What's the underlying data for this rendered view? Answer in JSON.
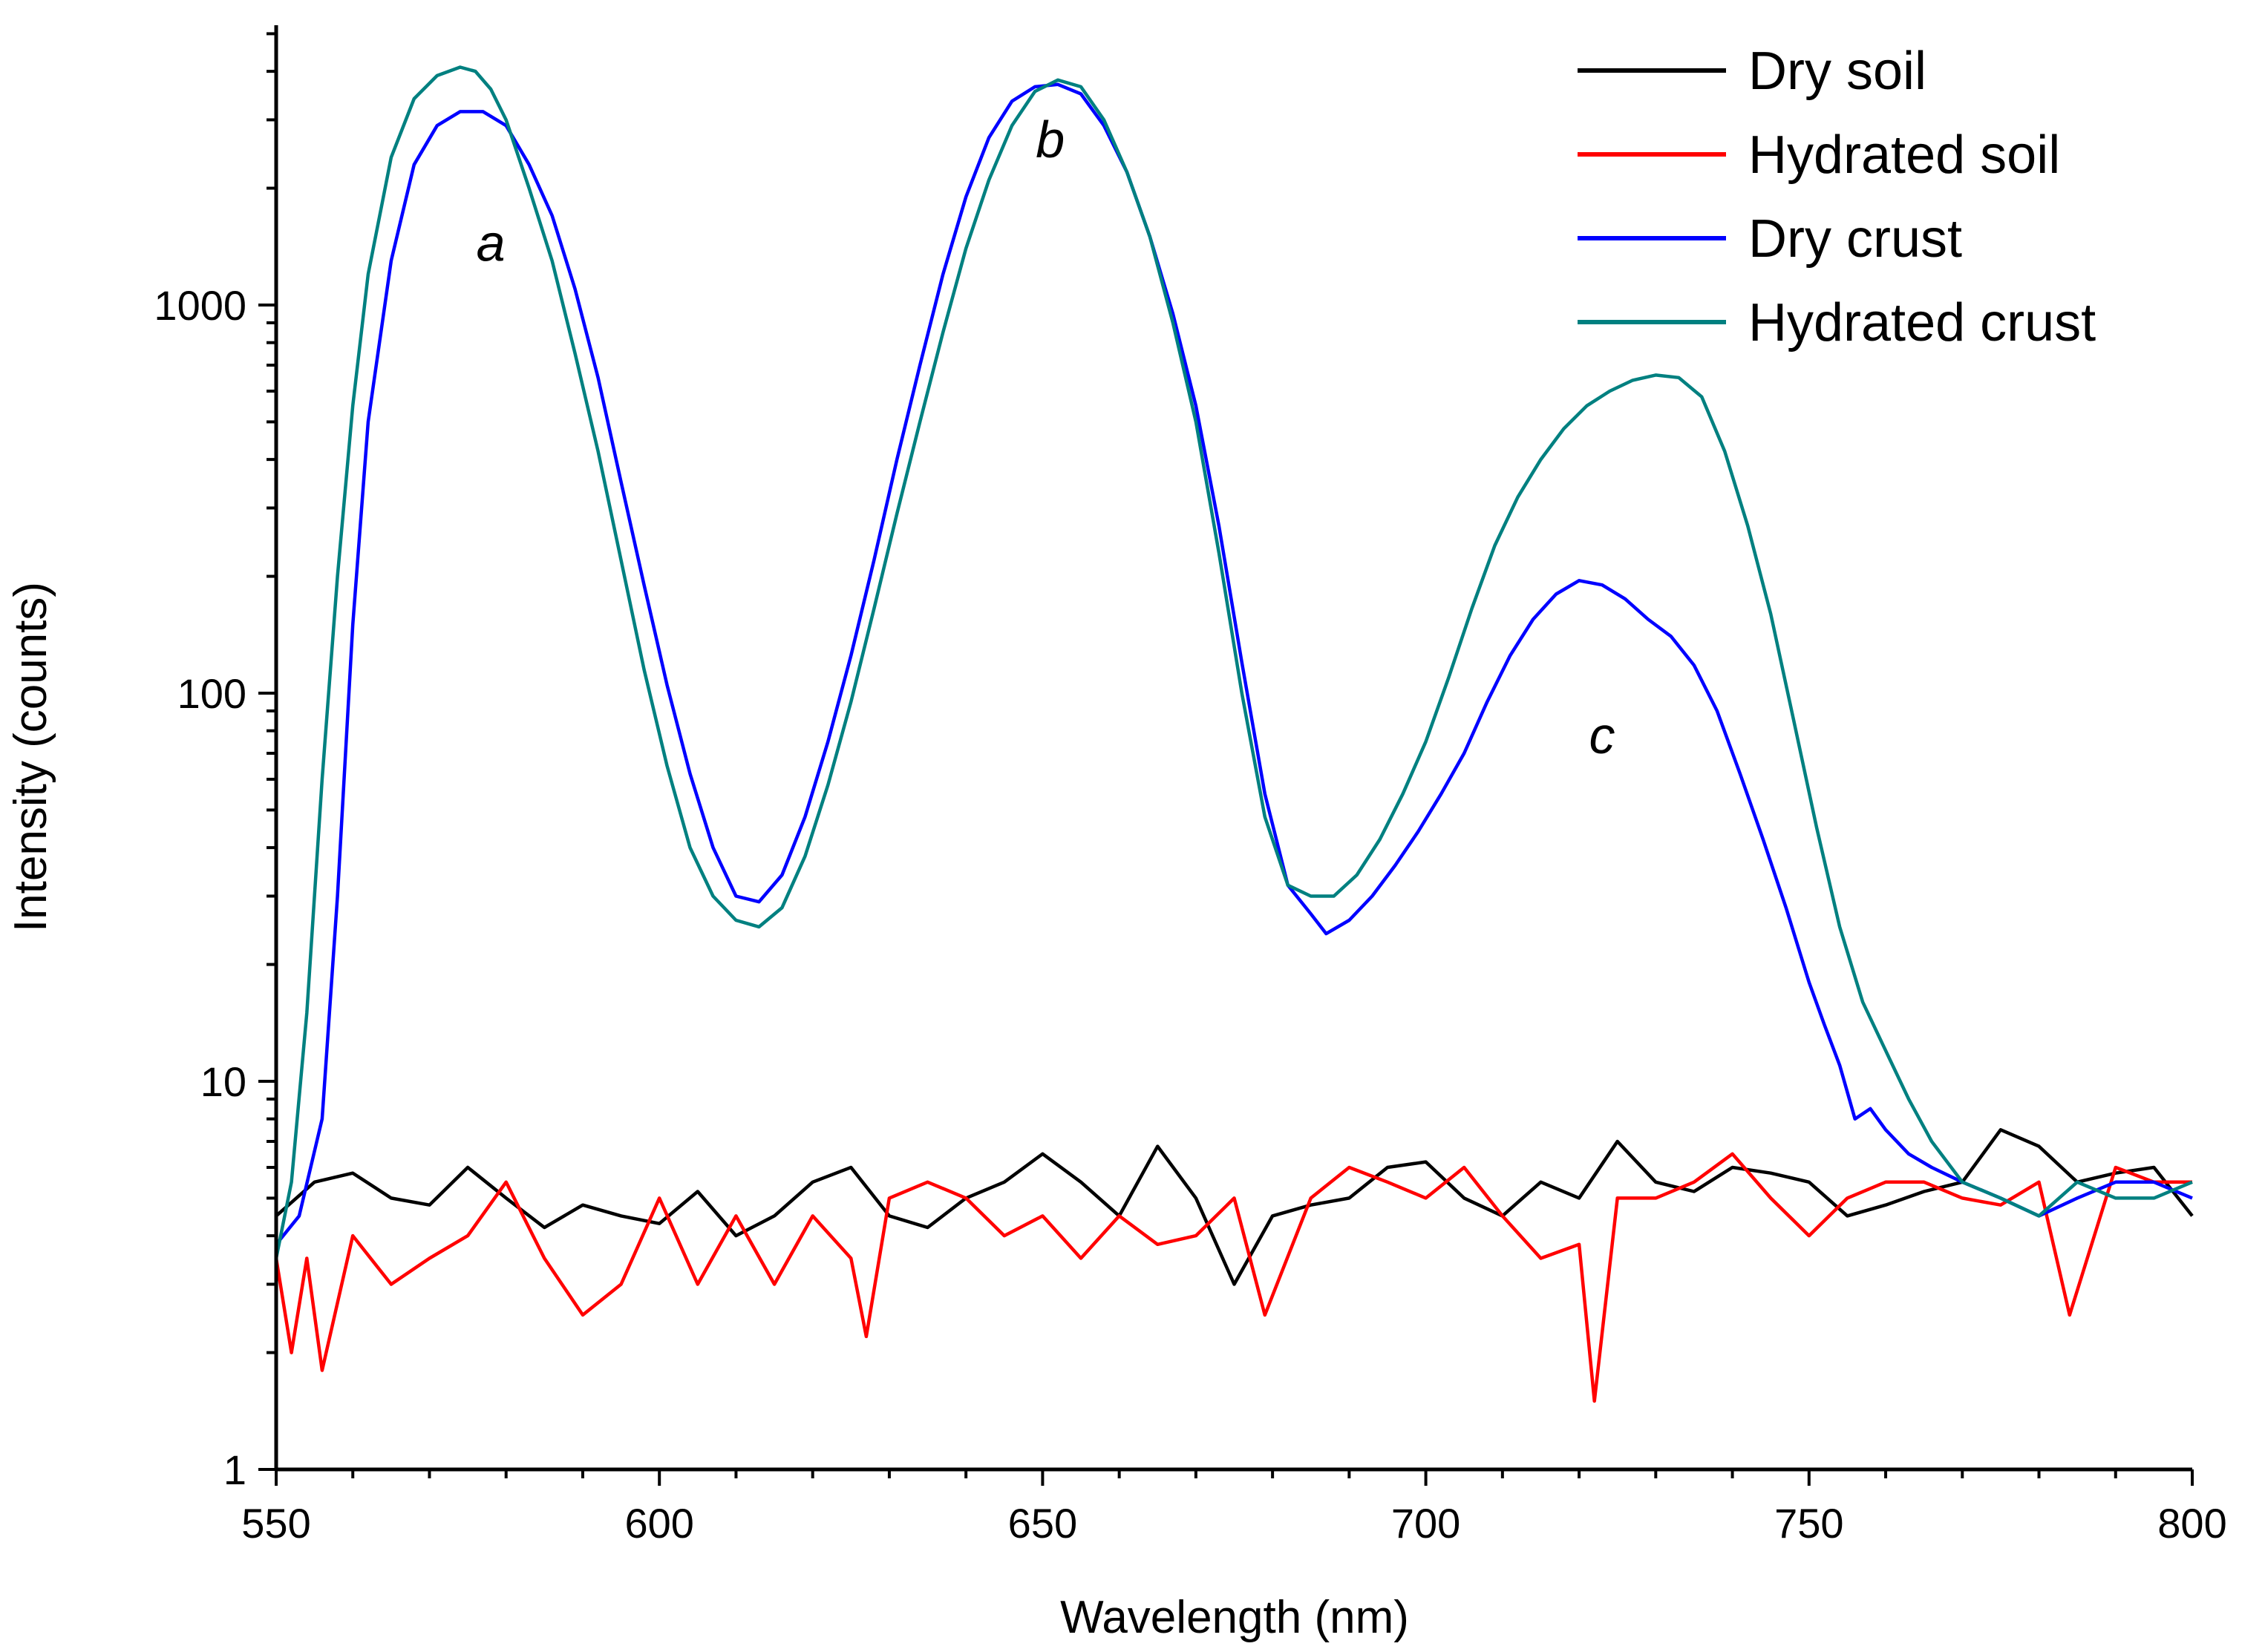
{
  "chart_data": {
    "type": "line",
    "title": "",
    "xlabel": "Wavelength (nm)",
    "ylabel": "Intensity (counts)",
    "xlim": [
      550,
      800
    ],
    "ylim": [
      1,
      5000
    ],
    "yscale": "log",
    "x_ticks": [
      550,
      600,
      650,
      700,
      750,
      800
    ],
    "x_tick_labels": [
      "550",
      "600",
      "650",
      "700",
      "750",
      "800"
    ],
    "y_ticks": [
      1,
      10,
      100,
      1000
    ],
    "y_tick_labels": [
      "1",
      "10",
      "100",
      "1000"
    ],
    "legend_position": "top-right",
    "series": [
      {
        "name": "Dry soil",
        "color": "#000000",
        "x": [
          550,
          555,
          560,
          565,
          570,
          575,
          580,
          585,
          590,
          595,
          600,
          605,
          610,
          615,
          620,
          625,
          630,
          635,
          640,
          645,
          650,
          655,
          660,
          665,
          670,
          675,
          680,
          685,
          690,
          695,
          700,
          705,
          710,
          715,
          720,
          725,
          730,
          735,
          740,
          745,
          750,
          755,
          760,
          765,
          770,
          775,
          780,
          785,
          790,
          795,
          800
        ],
        "y": [
          4.5,
          5.5,
          5.8,
          5.0,
          4.8,
          6.0,
          5.0,
          4.2,
          4.8,
          4.5,
          4.3,
          5.2,
          4.0,
          4.5,
          5.5,
          6.0,
          4.5,
          4.2,
          5.0,
          5.5,
          6.5,
          5.5,
          4.5,
          6.8,
          5.0,
          3.0,
          4.5,
          4.8,
          5.0,
          6.0,
          6.2,
          5.0,
          4.5,
          5.5,
          5.0,
          7.0,
          5.5,
          5.2,
          6.0,
          5.8,
          5.5,
          4.5,
          4.8,
          5.2,
          5.5,
          7.5,
          6.8,
          5.5,
          5.8,
          6.0,
          4.5
        ]
      },
      {
        "name": "Hydrated soil",
        "color": "#ff0000",
        "x": [
          550,
          552,
          554,
          556,
          560,
          565,
          570,
          575,
          580,
          585,
          590,
          595,
          600,
          605,
          610,
          615,
          620,
          625,
          627,
          630,
          635,
          640,
          645,
          650,
          655,
          660,
          665,
          670,
          675,
          679,
          685,
          690,
          695,
          700,
          705,
          710,
          715,
          720,
          722,
          725,
          730,
          735,
          740,
          745,
          750,
          755,
          760,
          765,
          770,
          775,
          780,
          784,
          790,
          795,
          800
        ],
        "y": [
          3.5,
          2.0,
          3.5,
          1.8,
          4.0,
          3.0,
          3.5,
          4.0,
          5.5,
          3.5,
          2.5,
          3.0,
          5.0,
          3.0,
          4.5,
          3.0,
          4.5,
          3.5,
          2.2,
          5.0,
          5.5,
          5.0,
          4.0,
          4.5,
          3.5,
          4.5,
          3.8,
          4.0,
          5.0,
          2.5,
          5.0,
          6.0,
          5.5,
          5.0,
          6.0,
          4.5,
          3.5,
          3.8,
          1.5,
          5.0,
          5.0,
          5.5,
          6.5,
          5.0,
          4.0,
          5.0,
          5.5,
          5.5,
          5.0,
          4.8,
          5.5,
          2.5,
          6.0,
          5.5,
          5.5
        ]
      },
      {
        "name": "Dry crust",
        "color": "#0000ff",
        "x": [
          550,
          553,
          556,
          558,
          560,
          562,
          565,
          568,
          571,
          574,
          577,
          580,
          583,
          586,
          589,
          592,
          595,
          598,
          601,
          604,
          607,
          610,
          613,
          616,
          619,
          622,
          625,
          628,
          631,
          634,
          637,
          640,
          643,
          646,
          649,
          652,
          655,
          658,
          661,
          664,
          667,
          670,
          673,
          676,
          679,
          682,
          685,
          687,
          690,
          693,
          696,
          699,
          702,
          705,
          708,
          711,
          714,
          717,
          720,
          723,
          726,
          729,
          732,
          735,
          738,
          741,
          744,
          747,
          750,
          752,
          754,
          756,
          758,
          760,
          763,
          766,
          770,
          775,
          780,
          785,
          790,
          795,
          800
        ],
        "y": [
          3.8,
          4.5,
          8,
          30,
          150,
          500,
          1300,
          2300,
          2900,
          3150,
          3150,
          2900,
          2300,
          1700,
          1100,
          650,
          350,
          190,
          105,
          62,
          40,
          30,
          29,
          34,
          48,
          75,
          125,
          220,
          400,
          700,
          1200,
          1900,
          2700,
          3350,
          3650,
          3700,
          3500,
          2900,
          2200,
          1500,
          950,
          550,
          270,
          120,
          55,
          32,
          27,
          24,
          26,
          30,
          36,
          44,
          55,
          70,
          95,
          125,
          155,
          180,
          195,
          190,
          175,
          155,
          140,
          118,
          90,
          62,
          42,
          28,
          18,
          14,
          11,
          8,
          8.5,
          7.5,
          6.5,
          6.0,
          5.5,
          5.0,
          4.5,
          5.0,
          5.5,
          5.5,
          5.0
        ]
      },
      {
        "name": "Hydrated crust",
        "color": "#008080",
        "x": [
          550,
          552,
          554,
          556,
          558,
          560,
          562,
          565,
          568,
          571,
          574,
          576,
          578,
          580,
          583,
          586,
          589,
          592,
          595,
          598,
          601,
          604,
          607,
          610,
          613,
          616,
          619,
          622,
          625,
          628,
          631,
          634,
          637,
          640,
          643,
          646,
          649,
          652,
          655,
          658,
          661,
          664,
          667,
          670,
          673,
          676,
          679,
          682,
          685,
          688,
          691,
          694,
          697,
          700,
          703,
          706,
          709,
          712,
          715,
          718,
          721,
          724,
          727,
          730,
          733,
          736,
          739,
          742,
          745,
          748,
          751,
          754,
          757,
          760,
          763,
          766,
          770,
          775,
          780,
          785,
          790,
          795,
          800
        ],
        "y": [
          3.5,
          5.5,
          15,
          60,
          200,
          550,
          1200,
          2400,
          3400,
          3900,
          4100,
          4000,
          3600,
          3000,
          2000,
          1300,
          750,
          420,
          220,
          115,
          65,
          40,
          30,
          26,
          25,
          28,
          38,
          58,
          95,
          165,
          290,
          500,
          850,
          1400,
          2100,
          2900,
          3550,
          3800,
          3650,
          3000,
          2200,
          1500,
          900,
          500,
          230,
          100,
          48,
          32,
          30,
          30,
          34,
          42,
          55,
          75,
          110,
          165,
          240,
          320,
          400,
          480,
          550,
          600,
          640,
          660,
          650,
          580,
          420,
          270,
          160,
          85,
          45,
          25,
          16,
          12,
          9,
          7.0,
          5.5,
          5.0,
          4.5,
          5.5,
          5.0,
          5.0,
          5.5
        ]
      }
    ],
    "annotations": [
      {
        "text": "a",
        "x": 578,
        "y": 1300
      },
      {
        "text": "b",
        "x": 651,
        "y": 2400
      },
      {
        "text": "c",
        "x": 723,
        "y": 70
      }
    ]
  }
}
